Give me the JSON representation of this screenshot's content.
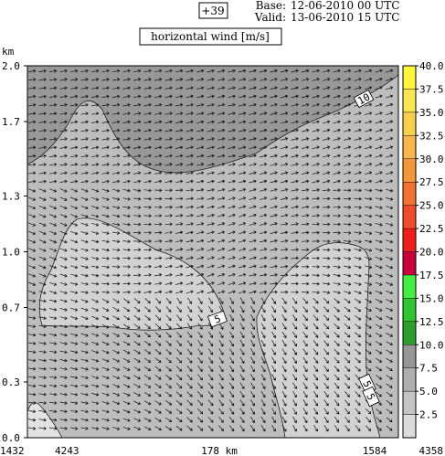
{
  "header": {
    "lead": "+39",
    "base_label": "Base:",
    "base_value": "12-06-2010  00 UTC",
    "valid_label": "Valid:",
    "valid_value": "13-06-2010  15 UTC",
    "title": "horizontal wind [m/s]"
  },
  "chart_data": {
    "type": "heatmap",
    "title": "horizontal wind [m/s]",
    "ylabel": "km",
    "ylim": [
      0,
      2.0
    ],
    "y_ticks": [
      "0.0",
      "0.3",
      "0.7",
      "1.0",
      "1.3",
      "1.7",
      "2.0"
    ],
    "x_ticks": [
      "1432",
      "4243",
      "178 km",
      "1584",
      "4358"
    ],
    "colorbar": {
      "values": [
        "2.5",
        "5.0",
        "7.5",
        "10.0",
        "12.5",
        "15.0",
        "17.5",
        "20.0",
        "22.5",
        "25.0",
        "27.5",
        "30.0",
        "32.5",
        "35.0",
        "37.5",
        "40.0"
      ],
      "colors": [
        "#dcdcdc",
        "#c4c4c4",
        "#aeaeae",
        "#969696",
        "#2aa02a",
        "#33c433",
        "#44ee44",
        "#c8003c",
        "#ee1e1e",
        "#f04a2c",
        "#f27032",
        "#f4963c",
        "#f6b84a",
        "#f8d050",
        "#fae452",
        "#fff53c"
      ]
    },
    "contour_labels": [
      "10",
      "5",
      "5",
      "5"
    ],
    "regions": [
      {
        "name": "upper band",
        "level": "10.0"
      },
      {
        "name": "background",
        "level": "7.5"
      },
      {
        "name": "left lobe",
        "level": "5.0"
      },
      {
        "name": "right lobe",
        "level": "5.0"
      },
      {
        "name": "bottom-left corner",
        "level": "2.5"
      }
    ],
    "grid": false
  }
}
